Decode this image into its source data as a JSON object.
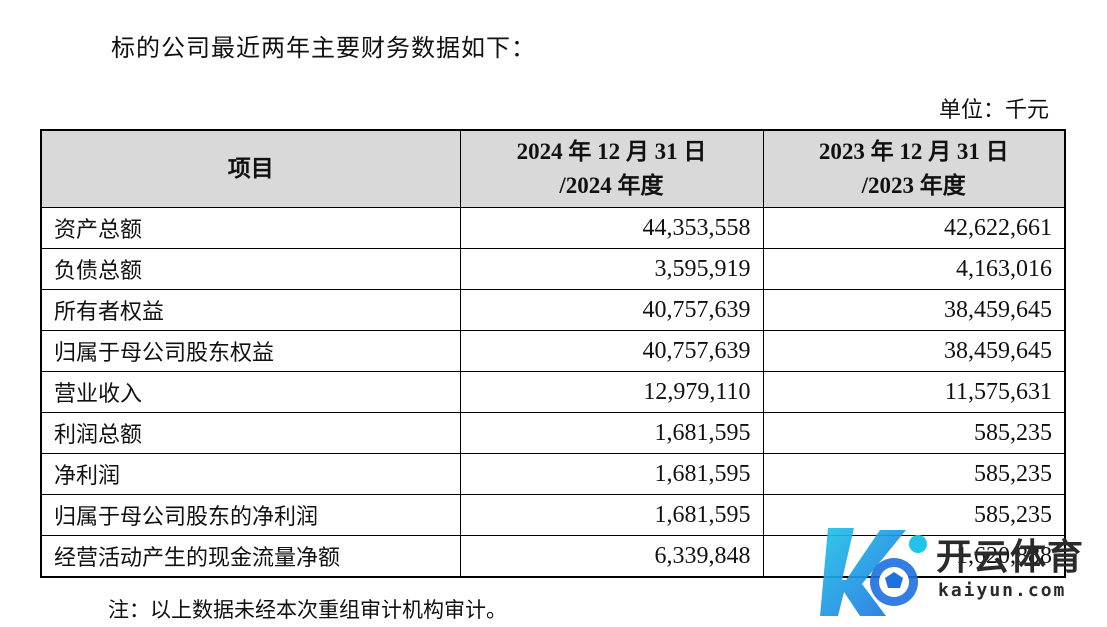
{
  "intro_text": "标的公司最近两年主要财务数据如下：",
  "unit_label": "单位：千元",
  "table": {
    "headers": {
      "item": "项目",
      "col1_line1": "2024 年 12 月 31 日",
      "col1_line2": "/2024 年度",
      "col2_line1": "2023 年 12 月 31 日",
      "col2_line2": "/2023 年度"
    },
    "rows": [
      {
        "item": "资产总额",
        "v2024": "44,353,558",
        "v2023": "42,622,661"
      },
      {
        "item": "负债总额",
        "v2024": "3,595,919",
        "v2023": "4,163,016"
      },
      {
        "item": "所有者权益",
        "v2024": "40,757,639",
        "v2023": "38,459,645"
      },
      {
        "item": "归属于母公司股东权益",
        "v2024": "40,757,639",
        "v2023": "38,459,645"
      },
      {
        "item": "营业收入",
        "v2024": "12,979,110",
        "v2023": "11,575,631"
      },
      {
        "item": "利润总额",
        "v2024": "1,681,595",
        "v2023": "585,235"
      },
      {
        "item": "净利润",
        "v2024": "1,681,595",
        "v2023": "585,235"
      },
      {
        "item": "归属于母公司股东的净利润",
        "v2024": "1,681,595",
        "v2023": "585,235"
      },
      {
        "item": "经营活动产生的现金流量净额",
        "v2024": "6,339,848",
        "v2023": "1,620,888"
      }
    ]
  },
  "note": "注：以上数据未经本次重组审计机构审计。",
  "watermark": {
    "brand": "开云体育",
    "domain": "kaiyun.com",
    "colors": {
      "logo_blue": "#1e6fe0",
      "logo_cyan": "#21c4e8",
      "text": "#2a2a2a"
    }
  }
}
